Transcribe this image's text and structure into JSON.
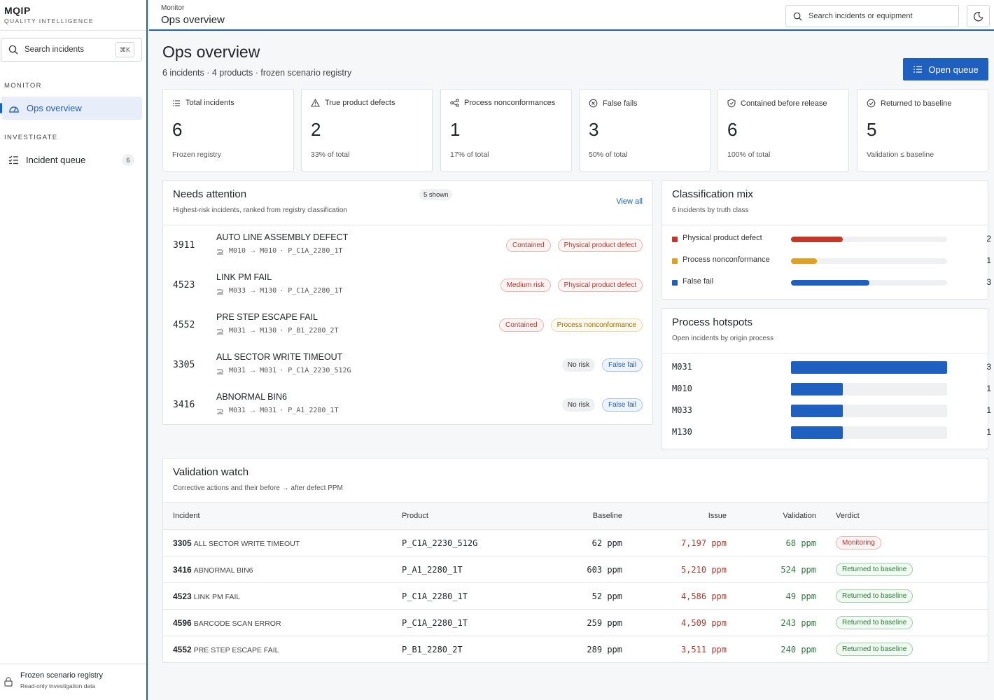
{
  "brand": {
    "name": "MQIP",
    "subtitle": "QUALITY INTELLIGENCE"
  },
  "sidebar": {
    "search_label": "Search incidents",
    "search_shortcut": "⌘K",
    "sections": [
      {
        "label": "MONITOR",
        "items": [
          {
            "label": "Ops overview",
            "icon": "gauge-icon",
            "active": true
          }
        ]
      },
      {
        "label": "INVESTIGATE",
        "items": [
          {
            "label": "Incident queue",
            "icon": "list-check-icon",
            "count": "6"
          }
        ]
      }
    ],
    "footer": {
      "title": "Frozen scenario registry",
      "subtitle": "Read-only investigation data",
      "icon": "lock-icon"
    }
  },
  "topbar": {
    "breadcrumb": "Monitor",
    "title": "Ops overview",
    "search_placeholder": "Search incidents or equipment",
    "theme_icon": "moon-icon"
  },
  "page": {
    "title": "Ops overview",
    "subtitle": "6 incidents · 4 products · frozen scenario registry",
    "primary_button": "Open queue"
  },
  "kpis": [
    {
      "label": "Total incidents",
      "icon": "list-icon",
      "value": "6",
      "note": "Frozen registry"
    },
    {
      "label": "True product defects",
      "icon": "warning-icon",
      "value": "2",
      "note": "33% of total"
    },
    {
      "label": "Process nonconformances",
      "icon": "process-icon",
      "value": "1",
      "note": "17% of total"
    },
    {
      "label": "False fails",
      "icon": "x-circle-icon",
      "value": "3",
      "note": "50% of total"
    },
    {
      "label": "Contained before release",
      "icon": "shield-check-icon",
      "value": "6",
      "note": "100% of total"
    },
    {
      "label": "Returned to baseline",
      "icon": "check-circle-icon",
      "value": "5",
      "note": "Validation ≤ baseline"
    }
  ],
  "needs_attention": {
    "title": "Needs attention",
    "badge": "5 shown",
    "subtitle": "Highest-risk incidents, ranked from registry classification",
    "view_all": "View all",
    "arrow": "→",
    "incidents": [
      {
        "id": "3911",
        "title": "AUTO LINE ASSEMBLY DEFECT",
        "from": "M010",
        "to": "M010",
        "product": "· P_C1A_2280_1T",
        "tags": [
          {
            "label": "Contained",
            "tone": "red"
          },
          {
            "label": "Physical product defect",
            "tone": "red"
          }
        ]
      },
      {
        "id": "4523",
        "title": "LINK PM FAIL",
        "from": "M033",
        "to": "M130",
        "product": "· P_C1A_2280_1T",
        "tags": [
          {
            "label": "Medium risk",
            "tone": "red"
          },
          {
            "label": "Physical product defect",
            "tone": "red"
          }
        ]
      },
      {
        "id": "4552",
        "title": "PRE STEP ESCAPE FAIL",
        "from": "M031",
        "to": "M130",
        "product": "· P_B1_2280_2T",
        "tags": [
          {
            "label": "Contained",
            "tone": "red"
          },
          {
            "label": "Process nonconformance",
            "tone": "amber"
          }
        ]
      },
      {
        "id": "3305",
        "title": "ALL SECTOR WRITE TIMEOUT",
        "from": "M031",
        "to": "M031",
        "product": "· P_C1A_2230_512G",
        "tags": [
          {
            "label": "No risk",
            "tone": "gray"
          },
          {
            "label": "False fail",
            "tone": "blue"
          }
        ]
      },
      {
        "id": "3416",
        "title": "ABNORMAL BIN6",
        "from": "M031",
        "to": "M031",
        "product": "· P_A1_2280_1T",
        "tags": [
          {
            "label": "No risk",
            "tone": "gray"
          },
          {
            "label": "False fail",
            "tone": "blue"
          }
        ]
      }
    ]
  },
  "classification_mix": {
    "title": "Classification mix",
    "subtitle": "6 incidents by truth class",
    "total": 6,
    "rows": [
      {
        "label": "Physical product defect",
        "count": 2,
        "color": "#c0392b"
      },
      {
        "label": "Process nonconformance",
        "count": 1,
        "color": "#e0a020"
      },
      {
        "label": "False fail",
        "count": 3,
        "color": "#1f5fbf"
      }
    ]
  },
  "process_hotspots": {
    "title": "Process hotspots",
    "subtitle": "Open incidents by origin process",
    "max": 3,
    "rows": [
      {
        "label": "M031",
        "count": 3
      },
      {
        "label": "M010",
        "count": 1
      },
      {
        "label": "M033",
        "count": 1
      },
      {
        "label": "M130",
        "count": 1
      }
    ]
  },
  "validation_watch": {
    "title": "Validation watch",
    "subtitle": "Corrective actions and their before → after defect PPM",
    "columns": [
      "Incident",
      "Product",
      "Baseline",
      "Issue",
      "Validation",
      "Verdict"
    ],
    "rows": [
      {
        "id": "3305",
        "name": "ALL SECTOR WRITE TIMEOUT",
        "product": "P_C1A_2230_512G",
        "baseline": "62 ppm",
        "issue": "7,197 ppm",
        "validation": "68 ppm",
        "verdict": "Monitoring",
        "tone": "red"
      },
      {
        "id": "3416",
        "name": "ABNORMAL BIN6",
        "product": "P_A1_2280_1T",
        "baseline": "603 ppm",
        "issue": "5,210 ppm",
        "validation": "524 ppm",
        "verdict": "Returned to baseline",
        "tone": "green"
      },
      {
        "id": "4523",
        "name": "LINK PM FAIL",
        "product": "P_C1A_2280_1T",
        "baseline": "52 ppm",
        "issue": "4,586 ppm",
        "validation": "49 ppm",
        "verdict": "Returned to baseline",
        "tone": "green"
      },
      {
        "id": "4596",
        "name": "BARCODE SCAN ERROR",
        "product": "P_C1A_2280_1T",
        "baseline": "259 ppm",
        "issue": "4,509 ppm",
        "validation": "243 ppm",
        "verdict": "Returned to baseline",
        "tone": "green"
      },
      {
        "id": "4552",
        "name": "PRE STEP ESCAPE FAIL",
        "product": "P_B1_2280_2T",
        "baseline": "289 ppm",
        "issue": "3,511 ppm",
        "validation": "240 ppm",
        "verdict": "Returned to baseline",
        "tone": "green"
      }
    ]
  }
}
